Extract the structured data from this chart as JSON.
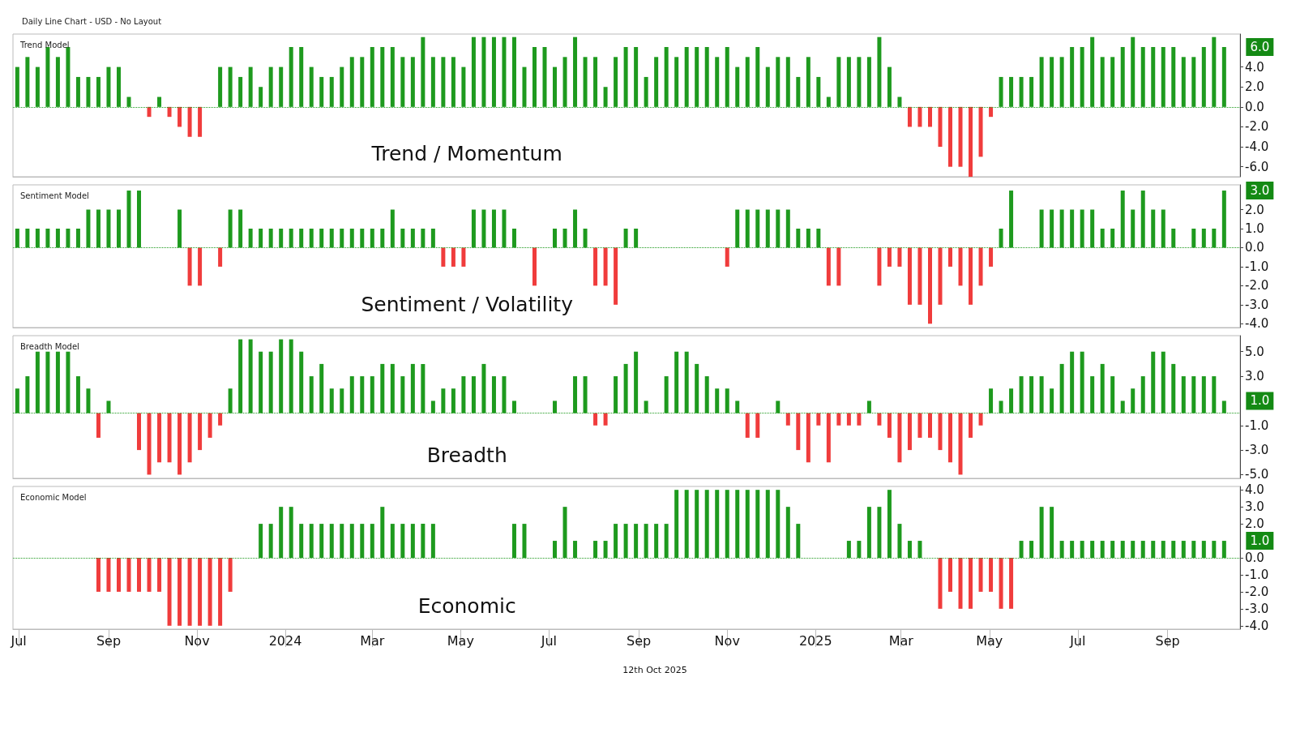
{
  "chart_data": [
    {
      "type": "bar",
      "title": "Trend Model",
      "subtitle": "Daily Line Chart - USD - No Layout",
      "annotations": [
        "Trend / Momentum",
        {
          "text": "6.0",
          "x": "2025-10-10",
          "y": 6
        }
      ],
      "x": [
        "2023-06-30",
        "2023-07-07",
        "2023-07-14",
        "2023-07-21",
        "2023-07-28",
        "2023-08-04",
        "2023-08-11",
        "2023-08-18",
        "2023-08-25",
        "2023-09-01",
        "2023-09-08",
        "2023-09-15",
        "2023-09-22",
        "2023-09-29",
        "2023-10-06",
        "2023-10-13",
        "2023-10-20",
        "2023-10-27",
        "2023-11-03",
        "2023-11-10",
        "2023-11-17",
        "2023-11-24",
        "2023-12-01",
        "2023-12-08",
        "2023-12-15",
        "2023-12-22",
        "2023-12-29",
        "2024-01-05",
        "2024-01-12",
        "2024-01-19",
        "2024-01-26",
        "2024-02-02",
        "2024-02-09",
        "2024-02-16",
        "2024-02-23",
        "2024-03-01",
        "2024-03-08",
        "2024-03-15",
        "2024-03-22",
        "2024-03-29",
        "2024-04-05",
        "2024-04-12",
        "2024-04-19",
        "2024-04-26",
        "2024-05-03",
        "2024-05-10",
        "2024-05-17",
        "2024-05-24",
        "2024-05-31",
        "2024-06-07",
        "2024-06-14",
        "2024-06-21",
        "2024-06-28",
        "2024-07-05",
        "2024-07-12",
        "2024-07-19",
        "2024-07-26",
        "2024-08-02",
        "2024-08-09",
        "2024-08-16",
        "2024-08-23",
        "2024-08-30",
        "2024-09-06",
        "2024-09-13",
        "2024-09-20",
        "2024-09-27",
        "2024-10-04",
        "2024-10-11",
        "2024-10-18",
        "2024-10-25",
        "2024-11-01",
        "2024-11-08",
        "2024-11-15",
        "2024-11-22",
        "2024-11-29",
        "2024-12-06",
        "2024-12-13",
        "2024-12-20",
        "2024-12-27",
        "2025-01-03",
        "2025-01-10",
        "2025-01-17",
        "2025-01-24",
        "2025-01-31",
        "2025-02-07",
        "2025-02-14",
        "2025-02-21",
        "2025-02-28",
        "2025-03-07",
        "2025-03-14",
        "2025-03-21",
        "2025-03-28",
        "2025-04-04",
        "2025-04-11",
        "2025-04-18",
        "2025-04-25",
        "2025-05-02",
        "2025-05-09",
        "2025-05-16",
        "2025-05-23",
        "2025-05-30",
        "2025-06-06",
        "2025-06-13",
        "2025-06-20",
        "2025-06-27",
        "2025-07-04",
        "2025-07-11",
        "2025-07-18",
        "2025-07-25",
        "2025-08-01",
        "2025-08-08",
        "2025-08-15",
        "2025-08-22",
        "2025-08-29",
        "2025-09-05",
        "2025-09-12",
        "2025-09-19",
        "2025-09-26",
        "2025-10-03",
        "2025-10-10"
      ],
      "series": [
        {
          "color": "#1e9a1e",
          "values": [
            4,
            5,
            4,
            6,
            5,
            6,
            3,
            3,
            3,
            4,
            4,
            1,
            0,
            null,
            1,
            null,
            null,
            null,
            null,
            0,
            4,
            4,
            3,
            4,
            2,
            4,
            4,
            6,
            6,
            4,
            3,
            3,
            4,
            5,
            5,
            6,
            6,
            6,
            5,
            5,
            7,
            5,
            5,
            5,
            4,
            7,
            7,
            7,
            7,
            7,
            4,
            6,
            6,
            4,
            5,
            7,
            5,
            5,
            2,
            5,
            6,
            6,
            3,
            5,
            6,
            5,
            6,
            6,
            6,
            5,
            6,
            4,
            5,
            6,
            4,
            5,
            5,
            3,
            5,
            3,
            1,
            5,
            5,
            5,
            5,
            7,
            4,
            1,
            null,
            null,
            null,
            null,
            null,
            null,
            null,
            null,
            null,
            3,
            3,
            3,
            3,
            5,
            5,
            5,
            6,
            6,
            7,
            5,
            5,
            6,
            7,
            6,
            6,
            6,
            6,
            5,
            5,
            6,
            7,
            6
          ]
        },
        {
          "color": "#f03c3c",
          "values": [
            null,
            null,
            null,
            null,
            null,
            null,
            null,
            null,
            null,
            null,
            null,
            null,
            null,
            -1,
            null,
            -1,
            -2,
            -3,
            -3,
            null,
            null,
            null,
            null,
            null,
            null,
            null,
            null,
            null,
            null,
            null,
            null,
            null,
            null,
            null,
            null,
            null,
            null,
            null,
            null,
            null,
            null,
            null,
            null,
            null,
            null,
            null,
            null,
            null,
            null,
            null,
            null,
            null,
            null,
            null,
            null,
            null,
            null,
            null,
            null,
            null,
            null,
            null,
            null,
            null,
            null,
            null,
            null,
            null,
            null,
            null,
            null,
            null,
            null,
            null,
            null,
            null,
            null,
            null,
            null,
            null,
            null,
            null,
            null,
            null,
            null,
            null,
            null,
            null,
            -2,
            -2,
            -2,
            -4,
            -6,
            -6,
            -7,
            -5,
            -1,
            null,
            null,
            null,
            null,
            null,
            null,
            null,
            null,
            null,
            null,
            null,
            null,
            null,
            null,
            null,
            null,
            null,
            null,
            null,
            null,
            null,
            null,
            null
          ]
        }
      ],
      "xlim": [
        "2023-06-27",
        "2025-10-21"
      ],
      "ylim": [
        -7,
        7.3
      ],
      "yticks": [
        {
          "value": -6,
          "label": "-6.0"
        },
        {
          "value": -4,
          "label": "-4.0"
        },
        {
          "value": -2,
          "label": "-2.0"
        },
        {
          "value": 0,
          "label": "0.0"
        },
        {
          "value": 2,
          "label": "2.0"
        },
        {
          "value": 4,
          "label": "4.0"
        }
      ],
      "ref_lines": [
        {
          "axis": "y",
          "value": 0,
          "line_style": "dotted",
          "color": "#1e9a1e"
        }
      ],
      "tick_labels": "y",
      "grid": false
    },
    {
      "type": "bar",
      "title": "Sentiment Model",
      "annotations": [
        "Sentiment / Volatility",
        {
          "text": "3.0",
          "x": "2025-10-10",
          "y": 3
        }
      ],
      "x": [
        "2023-06-30",
        "2023-07-07",
        "2023-07-14",
        "2023-07-21",
        "2023-07-28",
        "2023-08-04",
        "2023-08-11",
        "2023-08-18",
        "2023-08-25",
        "2023-09-01",
        "2023-09-08",
        "2023-09-15",
        "2023-09-22",
        "2023-09-29",
        "2023-10-06",
        "2023-10-13",
        "2023-10-20",
        "2023-10-27",
        "2023-11-03",
        "2023-11-10",
        "2023-11-17",
        "2023-11-24",
        "2023-12-01",
        "2023-12-08",
        "2023-12-15",
        "2023-12-22",
        "2023-12-29",
        "2024-01-05",
        "2024-01-12",
        "2024-01-19",
        "2024-01-26",
        "2024-02-02",
        "2024-02-09",
        "2024-02-16",
        "2024-02-23",
        "2024-03-01",
        "2024-03-08",
        "2024-03-15",
        "2024-03-22",
        "2024-03-29",
        "2024-04-05",
        "2024-04-12",
        "2024-04-19",
        "2024-04-26",
        "2024-05-03",
        "2024-05-10",
        "2024-05-17",
        "2024-05-24",
        "2024-05-31",
        "2024-06-07",
        "2024-06-14",
        "2024-06-21",
        "2024-06-28",
        "2024-07-05",
        "2024-07-12",
        "2024-07-19",
        "2024-07-26",
        "2024-08-02",
        "2024-08-09",
        "2024-08-16",
        "2024-08-23",
        "2024-08-30",
        "2024-09-06",
        "2024-09-13",
        "2024-09-20",
        "2024-09-27",
        "2024-10-04",
        "2024-10-11",
        "2024-10-18",
        "2024-10-25",
        "2024-11-01",
        "2024-11-08",
        "2024-11-15",
        "2024-11-22",
        "2024-11-29",
        "2024-12-06",
        "2024-12-13",
        "2024-12-20",
        "2024-12-27",
        "2025-01-03",
        "2025-01-10",
        "2025-01-17",
        "2025-01-24",
        "2025-01-31",
        "2025-02-07",
        "2025-02-14",
        "2025-02-21",
        "2025-02-28",
        "2025-03-07",
        "2025-03-14",
        "2025-03-21",
        "2025-03-28",
        "2025-04-04",
        "2025-04-11",
        "2025-04-18",
        "2025-04-25",
        "2025-05-02",
        "2025-05-09",
        "2025-05-16",
        "2025-05-23",
        "2025-05-30",
        "2025-06-06",
        "2025-06-13",
        "2025-06-20",
        "2025-06-27",
        "2025-07-04",
        "2025-07-11",
        "2025-07-18",
        "2025-07-25",
        "2025-08-01",
        "2025-08-08",
        "2025-08-15",
        "2025-08-22",
        "2025-08-29",
        "2025-09-05",
        "2025-09-12",
        "2025-09-19",
        "2025-09-26",
        "2025-10-03",
        "2025-10-10"
      ],
      "series": [
        {
          "color": "#1e9a1e",
          "values": [
            1,
            1,
            1,
            1,
            1,
            1,
            1,
            2,
            2,
            2,
            2,
            3,
            3,
            0,
            0,
            0,
            2,
            null,
            null,
            0,
            null,
            2,
            2,
            1,
            1,
            1,
            1,
            1,
            1,
            1,
            1,
            1,
            1,
            1,
            1,
            1,
            1,
            2,
            1,
            1,
            1,
            1,
            null,
            null,
            null,
            2,
            2,
            2,
            2,
            1,
            0,
            null,
            0,
            1,
            1,
            2,
            1,
            null,
            null,
            null,
            1,
            1,
            0,
            0,
            0,
            0,
            0,
            0,
            0,
            0,
            null,
            2,
            2,
            2,
            2,
            2,
            2,
            1,
            1,
            1,
            null,
            null,
            0,
            0,
            0,
            null,
            null,
            null,
            null,
            null,
            null,
            null,
            null,
            null,
            null,
            null,
            null,
            1,
            3,
            0,
            0,
            2,
            2,
            2,
            2,
            2,
            2,
            1,
            1,
            3,
            2,
            3,
            2,
            2,
            1,
            0,
            1,
            1,
            1,
            3
          ]
        },
        {
          "color": "#f03c3c",
          "values": [
            null,
            null,
            null,
            null,
            null,
            null,
            null,
            null,
            null,
            null,
            null,
            null,
            null,
            null,
            null,
            null,
            null,
            -2,
            -2,
            null,
            -1,
            null,
            null,
            null,
            null,
            null,
            null,
            null,
            null,
            null,
            null,
            null,
            null,
            null,
            null,
            null,
            null,
            null,
            null,
            null,
            null,
            null,
            -1,
            -1,
            -1,
            null,
            null,
            null,
            null,
            null,
            null,
            -2,
            null,
            null,
            null,
            null,
            null,
            -2,
            -2,
            -3,
            null,
            null,
            null,
            null,
            null,
            null,
            null,
            null,
            null,
            null,
            -1,
            null,
            null,
            null,
            null,
            null,
            null,
            null,
            null,
            null,
            -2,
            -2,
            null,
            null,
            null,
            -2,
            -1,
            -1,
            -3,
            -3,
            -4,
            -3,
            -1,
            -2,
            -3,
            -2,
            -1,
            null,
            null,
            null,
            null,
            null,
            null,
            null,
            null,
            null,
            null,
            null,
            null,
            null,
            null,
            null,
            null,
            null,
            null,
            null,
            null,
            null,
            null,
            null
          ]
        }
      ],
      "xlim": [
        "2023-06-27",
        "2025-10-21"
      ],
      "ylim": [
        -4.2,
        3.3
      ],
      "yticks": [
        {
          "value": -4,
          "label": "-4.0"
        },
        {
          "value": -3,
          "label": "-3.0"
        },
        {
          "value": -2,
          "label": "-2.0"
        },
        {
          "value": -1,
          "label": "-1.0"
        },
        {
          "value": 0,
          "label": "0.0"
        },
        {
          "value": 1,
          "label": "1.0"
        },
        {
          "value": 2,
          "label": "2.0"
        }
      ],
      "ref_lines": [
        {
          "axis": "y",
          "value": 0,
          "line_style": "dotted",
          "color": "#1e9a1e"
        }
      ],
      "tick_labels": "y",
      "grid": false
    },
    {
      "type": "bar",
      "title": "Breadth Model",
      "annotations": [
        "Breadth",
        {
          "text": "1.0",
          "x": "2025-10-10",
          "y": 1
        }
      ],
      "x": [
        "2023-06-30",
        "2023-07-07",
        "2023-07-14",
        "2023-07-21",
        "2023-07-28",
        "2023-08-04",
        "2023-08-11",
        "2023-08-18",
        "2023-08-25",
        "2023-09-01",
        "2023-09-08",
        "2023-09-15",
        "2023-09-22",
        "2023-09-29",
        "2023-10-06",
        "2023-10-13",
        "2023-10-20",
        "2023-10-27",
        "2023-11-03",
        "2023-11-10",
        "2023-11-17",
        "2023-11-24",
        "2023-12-01",
        "2023-12-08",
        "2023-12-15",
        "2023-12-22",
        "2023-12-29",
        "2024-01-05",
        "2024-01-12",
        "2024-01-19",
        "2024-01-26",
        "2024-02-02",
        "2024-02-09",
        "2024-02-16",
        "2024-02-23",
        "2024-03-01",
        "2024-03-08",
        "2024-03-15",
        "2024-03-22",
        "2024-03-29",
        "2024-04-05",
        "2024-04-12",
        "2024-04-19",
        "2024-04-26",
        "2024-05-03",
        "2024-05-10",
        "2024-05-17",
        "2024-05-24",
        "2024-05-31",
        "2024-06-07",
        "2024-06-14",
        "2024-06-21",
        "2024-06-28",
        "2024-07-05",
        "2024-07-12",
        "2024-07-19",
        "2024-07-26",
        "2024-08-02",
        "2024-08-09",
        "2024-08-16",
        "2024-08-23",
        "2024-08-30",
        "2024-09-06",
        "2024-09-13",
        "2024-09-20",
        "2024-09-27",
        "2024-10-04",
        "2024-10-11",
        "2024-10-18",
        "2024-10-25",
        "2024-11-01",
        "2024-11-08",
        "2024-11-15",
        "2024-11-22",
        "2024-11-29",
        "2024-12-06",
        "2024-12-13",
        "2024-12-20",
        "2024-12-27",
        "2025-01-03",
        "2025-01-10",
        "2025-01-17",
        "2025-01-24",
        "2025-01-31",
        "2025-02-07",
        "2025-02-14",
        "2025-02-21",
        "2025-02-28",
        "2025-03-07",
        "2025-03-14",
        "2025-03-21",
        "2025-03-28",
        "2025-04-04",
        "2025-04-11",
        "2025-04-18",
        "2025-04-25",
        "2025-05-02",
        "2025-05-09",
        "2025-05-16",
        "2025-05-23",
        "2025-05-30",
        "2025-06-06",
        "2025-06-13",
        "2025-06-20",
        "2025-06-27",
        "2025-07-04",
        "2025-07-11",
        "2025-07-18",
        "2025-07-25",
        "2025-08-01",
        "2025-08-08",
        "2025-08-15",
        "2025-08-22",
        "2025-08-29",
        "2025-09-05",
        "2025-09-12",
        "2025-09-19",
        "2025-09-26",
        "2025-10-03",
        "2025-10-10"
      ],
      "series": [
        {
          "color": "#1e9a1e",
          "values": [
            2,
            3,
            5,
            5,
            5,
            5,
            3,
            2,
            null,
            1,
            0,
            0,
            null,
            null,
            null,
            null,
            null,
            null,
            null,
            null,
            null,
            2,
            6,
            6,
            5,
            5,
            6,
            6,
            5,
            3,
            4,
            2,
            2,
            3,
            3,
            3,
            4,
            4,
            3,
            4,
            4,
            1,
            2,
            2,
            3,
            3,
            4,
            3,
            3,
            1,
            0,
            0,
            0,
            1,
            0,
            3,
            3,
            null,
            null,
            3,
            4,
            5,
            1,
            0,
            3,
            5,
            5,
            4,
            3,
            2,
            2,
            1,
            null,
            null,
            0,
            1,
            null,
            null,
            null,
            null,
            null,
            null,
            null,
            null,
            1,
            null,
            null,
            null,
            null,
            null,
            null,
            null,
            null,
            null,
            null,
            null,
            2,
            1,
            2,
            3,
            3,
            3,
            2,
            4,
            5,
            5,
            3,
            4,
            3,
            1,
            2,
            3,
            5,
            5,
            4,
            3,
            3,
            3,
            3,
            1
          ]
        },
        {
          "color": "#f03c3c",
          "values": [
            null,
            null,
            null,
            null,
            null,
            null,
            null,
            null,
            -2,
            null,
            null,
            null,
            -3,
            -5,
            -4,
            -4,
            -5,
            -4,
            -3,
            -2,
            -1,
            null,
            null,
            null,
            null,
            null,
            null,
            null,
            null,
            null,
            null,
            null,
            null,
            null,
            null,
            null,
            null,
            null,
            null,
            null,
            null,
            null,
            null,
            null,
            null,
            null,
            null,
            null,
            null,
            null,
            null,
            null,
            null,
            null,
            null,
            null,
            null,
            -1,
            -1,
            null,
            null,
            null,
            null,
            null,
            null,
            null,
            null,
            null,
            null,
            null,
            null,
            null,
            -2,
            -2,
            null,
            null,
            -1,
            -3,
            -4,
            -1,
            -4,
            -1,
            -1,
            -1,
            null,
            -1,
            -2,
            -4,
            -3,
            -2,
            -2,
            -3,
            -4,
            -5,
            -2,
            -1,
            null,
            null,
            null,
            null,
            null,
            null,
            null,
            null,
            null,
            null,
            null,
            null,
            null,
            null,
            null,
            null,
            null,
            null,
            null,
            null,
            null,
            null,
            null,
            null
          ]
        }
      ],
      "xlim": [
        "2023-06-27",
        "2025-10-21"
      ],
      "ylim": [
        -5.3,
        6.3
      ],
      "yticks": [
        {
          "value": -5,
          "label": "-5.0"
        },
        {
          "value": -3,
          "label": "-3.0"
        },
        {
          "value": -1,
          "label": "-1.0"
        },
        {
          "value": 3,
          "label": "3.0"
        },
        {
          "value": 5,
          "label": "5.0"
        }
      ],
      "ref_lines": [
        {
          "axis": "y",
          "value": 0,
          "line_style": "dotted",
          "color": "#1e9a1e"
        }
      ],
      "tick_labels": "y",
      "grid": false
    },
    {
      "type": "bar",
      "title": "Economic Model",
      "annotations": [
        "Economic",
        "12th Oct 2025",
        {
          "text": "1.0",
          "x": "2025-10-10",
          "y": 1
        }
      ],
      "x": [
        "2023-06-30",
        "2023-07-07",
        "2023-07-14",
        "2023-07-21",
        "2023-07-28",
        "2023-08-04",
        "2023-08-11",
        "2023-08-18",
        "2023-08-25",
        "2023-09-01",
        "2023-09-08",
        "2023-09-15",
        "2023-09-22",
        "2023-09-29",
        "2023-10-06",
        "2023-10-13",
        "2023-10-20",
        "2023-10-27",
        "2023-11-03",
        "2023-11-10",
        "2023-11-17",
        "2023-11-24",
        "2023-12-01",
        "2023-12-08",
        "2023-12-15",
        "2023-12-22",
        "2023-12-29",
        "2024-01-05",
        "2024-01-12",
        "2024-01-19",
        "2024-01-26",
        "2024-02-02",
        "2024-02-09",
        "2024-02-16",
        "2024-02-23",
        "2024-03-01",
        "2024-03-08",
        "2024-03-15",
        "2024-03-22",
        "2024-03-29",
        "2024-04-05",
        "2024-04-12",
        "2024-04-19",
        "2024-04-26",
        "2024-05-03",
        "2024-05-10",
        "2024-05-17",
        "2024-05-24",
        "2024-05-31",
        "2024-06-07",
        "2024-06-14",
        "2024-06-21",
        "2024-06-28",
        "2024-07-05",
        "2024-07-12",
        "2024-07-19",
        "2024-07-26",
        "2024-08-02",
        "2024-08-09",
        "2024-08-16",
        "2024-08-23",
        "2024-08-30",
        "2024-09-06",
        "2024-09-13",
        "2024-09-20",
        "2024-09-27",
        "2024-10-04",
        "2024-10-11",
        "2024-10-18",
        "2024-10-25",
        "2024-11-01",
        "2024-11-08",
        "2024-11-15",
        "2024-11-22",
        "2024-11-29",
        "2024-12-06",
        "2024-12-13",
        "2024-12-20",
        "2024-12-27",
        "2025-01-03",
        "2025-01-10",
        "2025-01-17",
        "2025-01-24",
        "2025-01-31",
        "2025-02-07",
        "2025-02-14",
        "2025-02-21",
        "2025-02-28",
        "2025-03-07",
        "2025-03-14",
        "2025-03-21",
        "2025-03-28",
        "2025-04-04",
        "2025-04-11",
        "2025-04-18",
        "2025-04-25",
        "2025-05-02",
        "2025-05-09",
        "2025-05-16",
        "2025-05-23",
        "2025-05-30",
        "2025-06-06",
        "2025-06-13",
        "2025-06-20",
        "2025-06-27",
        "2025-07-04",
        "2025-07-11",
        "2025-07-18",
        "2025-07-25",
        "2025-08-01",
        "2025-08-08",
        "2025-08-15",
        "2025-08-22",
        "2025-08-29",
        "2025-09-05",
        "2025-09-12",
        "2025-09-19",
        "2025-09-26",
        "2025-10-03",
        "2025-10-10"
      ],
      "series": [
        {
          "color": "#1e9a1e",
          "values": [
            0,
            0,
            0,
            0,
            0,
            0,
            0,
            0,
            null,
            null,
            null,
            null,
            null,
            null,
            null,
            null,
            null,
            null,
            null,
            null,
            null,
            null,
            0,
            0,
            2,
            2,
            3,
            3,
            2,
            2,
            2,
            2,
            2,
            2,
            2,
            2,
            3,
            2,
            2,
            2,
            2,
            2,
            0,
            0,
            0,
            0,
            0,
            0,
            0,
            2,
            2,
            0,
            0,
            1,
            3,
            1,
            0,
            1,
            1,
            2,
            2,
            2,
            2,
            2,
            2,
            4,
            4,
            4,
            4,
            4,
            4,
            4,
            4,
            4,
            4,
            4,
            3,
            2,
            0,
            0,
            0,
            0,
            1,
            1,
            3,
            3,
            4,
            2,
            1,
            1,
            0,
            null,
            null,
            null,
            null,
            null,
            null,
            null,
            null,
            1,
            1,
            3,
            3,
            1,
            1,
            1,
            1,
            1,
            1,
            1,
            1,
            1,
            1,
            1,
            1,
            1,
            1,
            1,
            1,
            1
          ]
        },
        {
          "color": "#f03c3c",
          "values": [
            null,
            null,
            null,
            null,
            null,
            null,
            null,
            null,
            -2,
            -2,
            -2,
            -2,
            -2,
            -2,
            -2,
            -4,
            -4,
            -4,
            -4,
            -4,
            -4,
            -2,
            null,
            null,
            null,
            null,
            null,
            null,
            null,
            null,
            null,
            null,
            null,
            null,
            null,
            null,
            null,
            null,
            null,
            null,
            null,
            null,
            null,
            null,
            null,
            null,
            null,
            null,
            null,
            null,
            null,
            null,
            null,
            null,
            null,
            null,
            null,
            null,
            null,
            null,
            null,
            null,
            null,
            null,
            null,
            null,
            null,
            null,
            null,
            null,
            null,
            null,
            null,
            null,
            null,
            null,
            null,
            null,
            null,
            null,
            null,
            null,
            null,
            null,
            null,
            null,
            null,
            null,
            null,
            null,
            null,
            -3,
            -2,
            -3,
            -3,
            -2,
            -2,
            -3,
            -3,
            null,
            null,
            null,
            null,
            null,
            null,
            null,
            null,
            null,
            null,
            null,
            null,
            null,
            null,
            null,
            null,
            null,
            null,
            null,
            null,
            null
          ]
        }
      ],
      "xlim": [
        "2023-06-27",
        "2025-10-21"
      ],
      "xticks": [
        {
          "value": "2023-07-01",
          "label": "Jul"
        },
        {
          "value": "2023-09-01",
          "label": "Sep"
        },
        {
          "value": "2023-11-01",
          "label": "Nov"
        },
        {
          "value": "2024-01-01",
          "label": "2024"
        },
        {
          "value": "2024-03-01",
          "label": "Mar"
        },
        {
          "value": "2024-05-01",
          "label": "May"
        },
        {
          "value": "2024-07-01",
          "label": "Jul"
        },
        {
          "value": "2024-09-01",
          "label": "Sep"
        },
        {
          "value": "2024-11-01",
          "label": "Nov"
        },
        {
          "value": "2025-01-01",
          "label": "2025"
        },
        {
          "value": "2025-03-01",
          "label": "Mar"
        },
        {
          "value": "2025-05-01",
          "label": "May"
        },
        {
          "value": "2025-07-01",
          "label": "Jul"
        },
        {
          "value": "2025-09-01",
          "label": "Sep"
        }
      ],
      "ylim": [
        -4.2,
        4.2
      ],
      "yticks": [
        {
          "value": -4,
          "label": "-4.0"
        },
        {
          "value": -3,
          "label": "-3.0"
        },
        {
          "value": -2,
          "label": "-2.0"
        },
        {
          "value": -1,
          "label": "-1.0"
        },
        {
          "value": 0,
          "label": "0.0"
        },
        {
          "value": 2,
          "label": "2.0"
        },
        {
          "value": 3,
          "label": "3.0"
        },
        {
          "value": 4,
          "label": "4.0"
        }
      ],
      "ref_lines": [
        {
          "axis": "y",
          "value": 0,
          "line_style": "dotted",
          "color": "#1e9a1e"
        }
      ],
      "grid": false
    }
  ]
}
